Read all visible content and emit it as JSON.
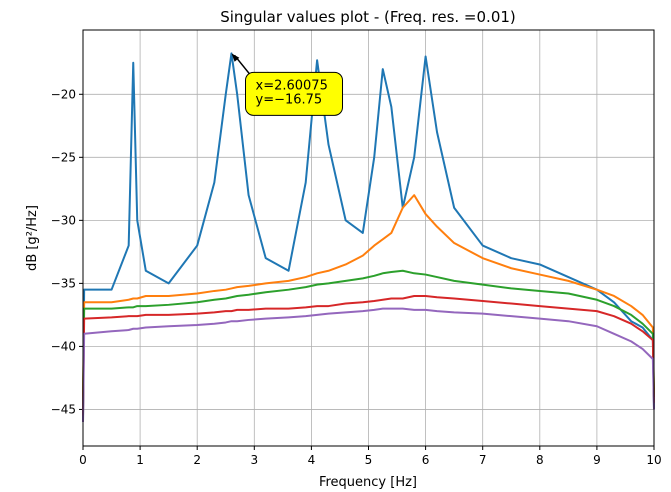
{
  "chart_data": {
    "type": "line",
    "title": "Singular values plot - (Freq. res. =0.01)",
    "x_label": "Frequency [Hz]",
    "y_label": "dB [g²/Hz]",
    "x": [
      0,
      0.02,
      0.5,
      0.8,
      0.88,
      0.95,
      1.1,
      1.5,
      2.0,
      2.3,
      2.5,
      2.6,
      2.7,
      2.9,
      3.2,
      3.6,
      3.9,
      4.1,
      4.3,
      4.6,
      4.9,
      5.1,
      5.25,
      5.4,
      5.6,
      5.8,
      6.0,
      6.2,
      6.5,
      7.0,
      7.5,
      8.0,
      8.5,
      9.0,
      9.3,
      9.6,
      9.8,
      9.98,
      10
    ],
    "series": [
      {
        "color": "#1f77b4",
        "values": [
          -46,
          -35.5,
          -35.5,
          -32,
          -17.5,
          -30,
          -34,
          -35,
          -32,
          -27,
          -20,
          -16.75,
          -20,
          -28,
          -33,
          -34,
          -27,
          -17.3,
          -24,
          -30,
          -31,
          -25,
          -18,
          -21,
          -29,
          -25,
          -17,
          -23,
          -29,
          -32,
          -33,
          -33.5,
          -34.5,
          -35.5,
          -36.5,
          -38,
          -38.5,
          -39.5,
          -45
        ]
      },
      {
        "color": "#ff7f0e",
        "values": [
          -44,
          -36.5,
          -36.5,
          -36.3,
          -36.2,
          -36.2,
          -36,
          -36,
          -35.8,
          -35.6,
          -35.5,
          -35.4,
          -35.3,
          -35.2,
          -35,
          -34.8,
          -34.5,
          -34.2,
          -34,
          -33.5,
          -32.8,
          -32,
          -31.5,
          -31,
          -29,
          -28,
          -29.5,
          -30.5,
          -31.8,
          -33,
          -33.8,
          -34.3,
          -34.8,
          -35.5,
          -36,
          -36.8,
          -37.5,
          -38.5,
          -44
        ]
      },
      {
        "color": "#2ca02c",
        "values": [
          -45,
          -37,
          -37,
          -36.9,
          -36.9,
          -36.8,
          -36.8,
          -36.7,
          -36.5,
          -36.3,
          -36.2,
          -36.1,
          -36,
          -35.9,
          -35.7,
          -35.5,
          -35.3,
          -35.1,
          -35,
          -34.8,
          -34.6,
          -34.4,
          -34.2,
          -34.1,
          -34,
          -34.2,
          -34.3,
          -34.5,
          -34.8,
          -35.1,
          -35.4,
          -35.6,
          -35.8,
          -36.3,
          -36.8,
          -37.5,
          -38.2,
          -39,
          -44
        ]
      },
      {
        "color": "#d62728",
        "values": [
          -45.5,
          -37.8,
          -37.7,
          -37.6,
          -37.6,
          -37.6,
          -37.5,
          -37.5,
          -37.4,
          -37.3,
          -37.2,
          -37.2,
          -37.1,
          -37.1,
          -37,
          -37,
          -36.9,
          -36.8,
          -36.8,
          -36.6,
          -36.5,
          -36.4,
          -36.3,
          -36.2,
          -36.2,
          -36,
          -36,
          -36.1,
          -36.2,
          -36.4,
          -36.6,
          -36.8,
          -37,
          -37.2,
          -37.6,
          -38.2,
          -38.8,
          -39.5,
          -44.5
        ]
      },
      {
        "color": "#9467bd",
        "values": [
          -46,
          -39,
          -38.8,
          -38.7,
          -38.6,
          -38.6,
          -38.5,
          -38.4,
          -38.3,
          -38.2,
          -38.1,
          -38,
          -38,
          -37.9,
          -37.8,
          -37.7,
          -37.6,
          -37.5,
          -37.4,
          -37.3,
          -37.2,
          -37.1,
          -37,
          -37,
          -37,
          -37.1,
          -37.1,
          -37.2,
          -37.3,
          -37.4,
          -37.6,
          -37.8,
          -38,
          -38.4,
          -39,
          -39.6,
          -40.2,
          -41,
          -45
        ]
      }
    ],
    "xlim": [
      0,
      10
    ],
    "xticks": [
      0,
      1,
      2,
      3,
      4,
      5,
      6,
      7,
      8,
      9,
      10
    ],
    "ylim": [
      -47.9,
      -14.9
    ],
    "yticks": [
      {
        "value": -45,
        "label": "−45"
      },
      {
        "value": -40,
        "label": "−40"
      },
      {
        "value": -35,
        "label": "−35"
      },
      {
        "value": -30,
        "label": "−30"
      },
      {
        "value": -25,
        "label": "−25"
      },
      {
        "value": -20,
        "label": "−20"
      }
    ],
    "grid": true,
    "annotation": {
      "lines": [
        "x=2.60075",
        "y=−16.75"
      ],
      "x": 2.60075,
      "y": -16.75
    }
  }
}
